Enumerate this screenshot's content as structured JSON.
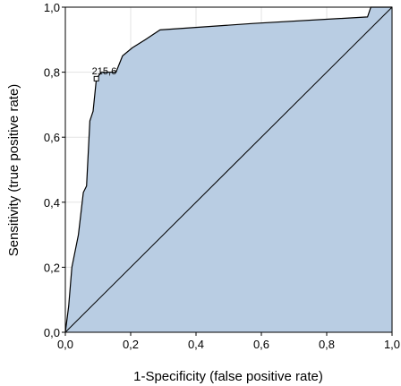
{
  "chart_data": {
    "type": "area",
    "xlabel": "1-Specificity (false positive rate)",
    "ylabel": "Sensitivity (true positive rate)",
    "xlim": [
      0,
      1
    ],
    "ylim": [
      0,
      1
    ],
    "x_ticks": [
      "0,0",
      "0,2",
      "0,4",
      "0,6",
      "0,8",
      "1,0"
    ],
    "y_ticks": [
      "0,0",
      "0,2",
      "0,4",
      "0,6",
      "0,8",
      "1,0"
    ],
    "grid": true,
    "fill_color": "#b9cde3",
    "line_color": "#000000",
    "roc_curve": {
      "x": [
        0,
        0.01,
        0.02,
        0.02,
        0.04,
        0.04,
        0.055,
        0.055,
        0.065,
        0.065,
        0.075,
        0.075,
        0.085,
        0.085,
        0.095,
        0.095,
        0.11,
        0.11,
        0.155,
        0.155,
        0.175,
        0.175,
        0.205,
        0.205,
        0.245,
        0.245,
        0.29,
        0.29,
        0.575,
        0.575,
        0.925,
        0.935,
        0.935,
        1.0
      ],
      "y": [
        0,
        0.08,
        0.2,
        0.2,
        0.3,
        0.3,
        0.43,
        0.43,
        0.45,
        0.45,
        0.65,
        0.65,
        0.68,
        0.68,
        0.78,
        0.78,
        0.8,
        0.8,
        0.8,
        0.8,
        0.85,
        0.85,
        0.875,
        0.875,
        0.9,
        0.9,
        0.93,
        0.93,
        0.95,
        0.95,
        0.97,
        1.0,
        1.0,
        1.0
      ]
    },
    "reference_line": {
      "x": [
        0,
        1
      ],
      "y": [
        0,
        1
      ]
    },
    "annotation": {
      "text": "215,6",
      "x": 0.095,
      "y": 0.78
    }
  }
}
